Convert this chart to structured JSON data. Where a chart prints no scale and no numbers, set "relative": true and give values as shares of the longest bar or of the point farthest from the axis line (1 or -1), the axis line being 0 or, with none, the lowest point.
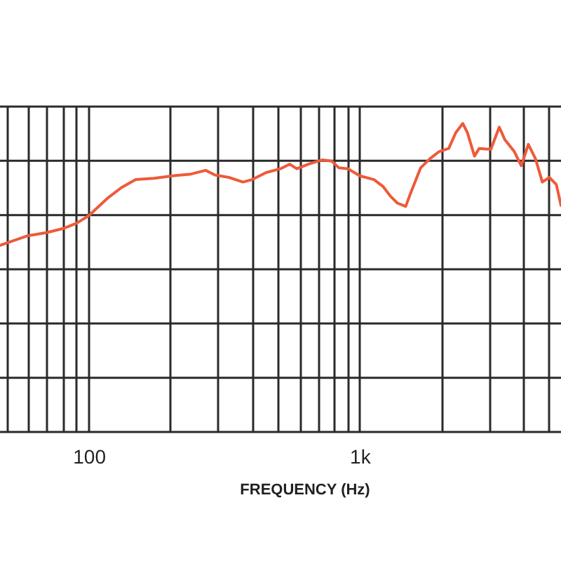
{
  "chart_data": {
    "type": "line",
    "relative": true,
    "log": "x",
    "grid": true,
    "tick_labels": "x",
    "xlabel": "FREQUENCY (Hz)",
    "xlim": [
      47,
      5540
    ],
    "xticks": [
      {
        "value": 50,
        "label": null
      },
      {
        "value": 60,
        "label": null
      },
      {
        "value": 70,
        "label": null
      },
      {
        "value": 80,
        "label": null
      },
      {
        "value": 90,
        "label": null
      },
      100,
      {
        "value": 200,
        "label": null
      },
      {
        "value": 300,
        "label": null
      },
      {
        "value": 400,
        "label": null
      },
      {
        "value": 500,
        "label": null
      },
      {
        "value": 600,
        "label": null
      },
      {
        "value": 700,
        "label": null
      },
      {
        "value": 800,
        "label": null
      },
      {
        "value": 900,
        "label": null
      },
      {
        "value": 1000,
        "label": "1k"
      },
      {
        "value": 2000,
        "label": null
      },
      {
        "value": 3000,
        "label": null
      },
      {
        "value": 4000,
        "label": null
      },
      {
        "value": 5000,
        "label": null
      }
    ],
    "x": [
      47,
      59.5,
      69.7,
      80.2,
      90.3,
      100,
      117,
      132,
      149,
      174,
      204,
      239,
      270,
      292,
      329,
      371,
      401,
      452,
      510,
      552,
      586,
      647,
      729,
      789,
      838,
      907,
      1002,
      1130,
      1222,
      1297,
      1377,
      1479,
      1552,
      1680,
      1820,
      1968,
      2133,
      2264,
      2403,
      2500,
      2655,
      2764,
      3051,
      3278,
      3438,
      3724,
      3953,
      4197,
      4457,
      4727,
      5018,
      5325,
      5540
    ],
    "series": [
      {
        "color": "#ee5a3a",
        "line_style": "solid",
        "values": [
          0.605,
          0.636,
          0.646,
          0.659,
          0.677,
          0.701,
          0.757,
          0.792,
          0.818,
          0.822,
          0.83,
          0.836,
          0.848,
          0.833,
          0.825,
          0.81,
          0.818,
          0.841,
          0.853,
          0.868,
          0.853,
          0.868,
          0.882,
          0.878,
          0.856,
          0.853,
          0.83,
          0.818,
          0.795,
          0.765,
          0.742,
          0.731,
          0.78,
          0.856,
          0.886,
          0.909,
          0.919,
          0.97,
          1.0,
          0.97,
          0.894,
          0.919,
          0.916,
          0.988,
          0.947,
          0.909,
          0.863,
          0.932,
          0.886,
          0.81,
          0.825,
          0.802,
          0.734
        ]
      }
    ]
  }
}
